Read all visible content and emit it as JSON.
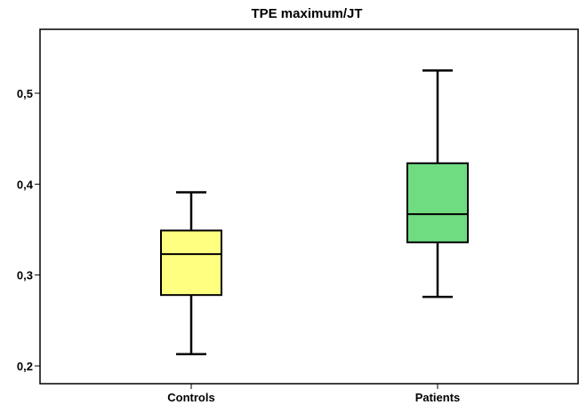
{
  "chart_data": {
    "type": "boxplot",
    "title": "TPE maximum/JT",
    "xlabel": "",
    "ylabel": "",
    "ylim": [
      0.195,
      0.57
    ],
    "yticks": [
      0.2,
      0.3,
      0.4,
      0.5
    ],
    "ytick_labels": [
      "0,2",
      "0,3",
      "0,4",
      "0,5"
    ],
    "categories": [
      "Controls",
      "Patients"
    ],
    "boxes": [
      {
        "category": "Controls",
        "min": 0.213,
        "q1": 0.278,
        "median": 0.323,
        "q3": 0.349,
        "max": 0.391,
        "color": "#ffff80"
      },
      {
        "category": "Patients",
        "min": 0.276,
        "q1": 0.336,
        "median": 0.367,
        "q3": 0.423,
        "max": 0.525,
        "color": "#70dc82"
      }
    ],
    "grid": false,
    "legend": "none"
  }
}
